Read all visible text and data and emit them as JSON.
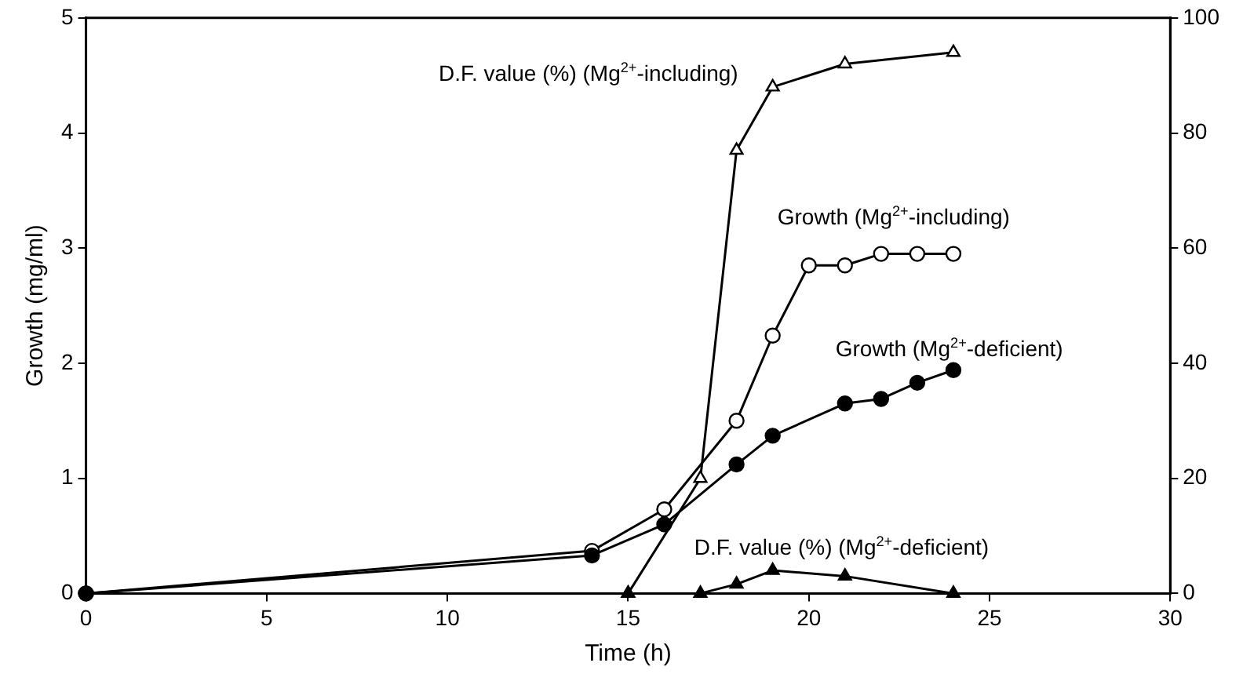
{
  "chart_data": {
    "type": "line",
    "xlabel": "Time (h)",
    "ylabel": "Growth (mg/ml)",
    "xlim": [
      0,
      30
    ],
    "xticks": [
      0,
      5,
      10,
      15,
      20,
      25,
      30
    ],
    "ylim": [
      0,
      5
    ],
    "yticks": [
      0,
      1,
      2,
      3,
      4,
      5
    ],
    "y2lim": [
      0,
      100
    ],
    "y2ticks": [
      0,
      20,
      40,
      60,
      80,
      100
    ],
    "grid": false,
    "legend": false,
    "line_style": "solid",
    "series": [
      {
        "name": "D.F. value (%) (Mg$^{2+}$-including)",
        "color": "#000000",
        "marker": "triangle",
        "axis": "y2",
        "x": [
          15,
          17,
          18,
          19,
          21,
          24
        ],
        "values": [
          0,
          20,
          77,
          88,
          92,
          94
        ]
      },
      {
        "name": "Growth (Mg$^{2+}$-including)",
        "color": "#000000",
        "marker": "circle",
        "x": [
          0,
          14,
          16,
          18,
          19,
          20,
          21,
          22,
          23,
          24
        ],
        "values": [
          0,
          0.37,
          0.73,
          1.5,
          2.24,
          2.85,
          2.85,
          2.95,
          2.95,
          2.95
        ]
      },
      {
        "name": "Growth (Mg$^{2+}$-deficient)",
        "color": "#000000",
        "marker": "circle",
        "x": [
          0,
          14,
          16,
          18,
          19,
          21,
          22,
          23,
          24
        ],
        "values": [
          0,
          0.33,
          0.6,
          1.12,
          1.37,
          1.65,
          1.69,
          1.83,
          1.94
        ]
      },
      {
        "name": "D.F. value (%) (Mg$^{2+}$-deficient)",
        "color": "#000000",
        "marker": "triangle",
        "axis": "y2",
        "x": [
          15,
          17,
          18,
          19,
          21,
          24
        ],
        "values": [
          0,
          0,
          1.6,
          4,
          3,
          0
        ]
      }
    ]
  }
}
